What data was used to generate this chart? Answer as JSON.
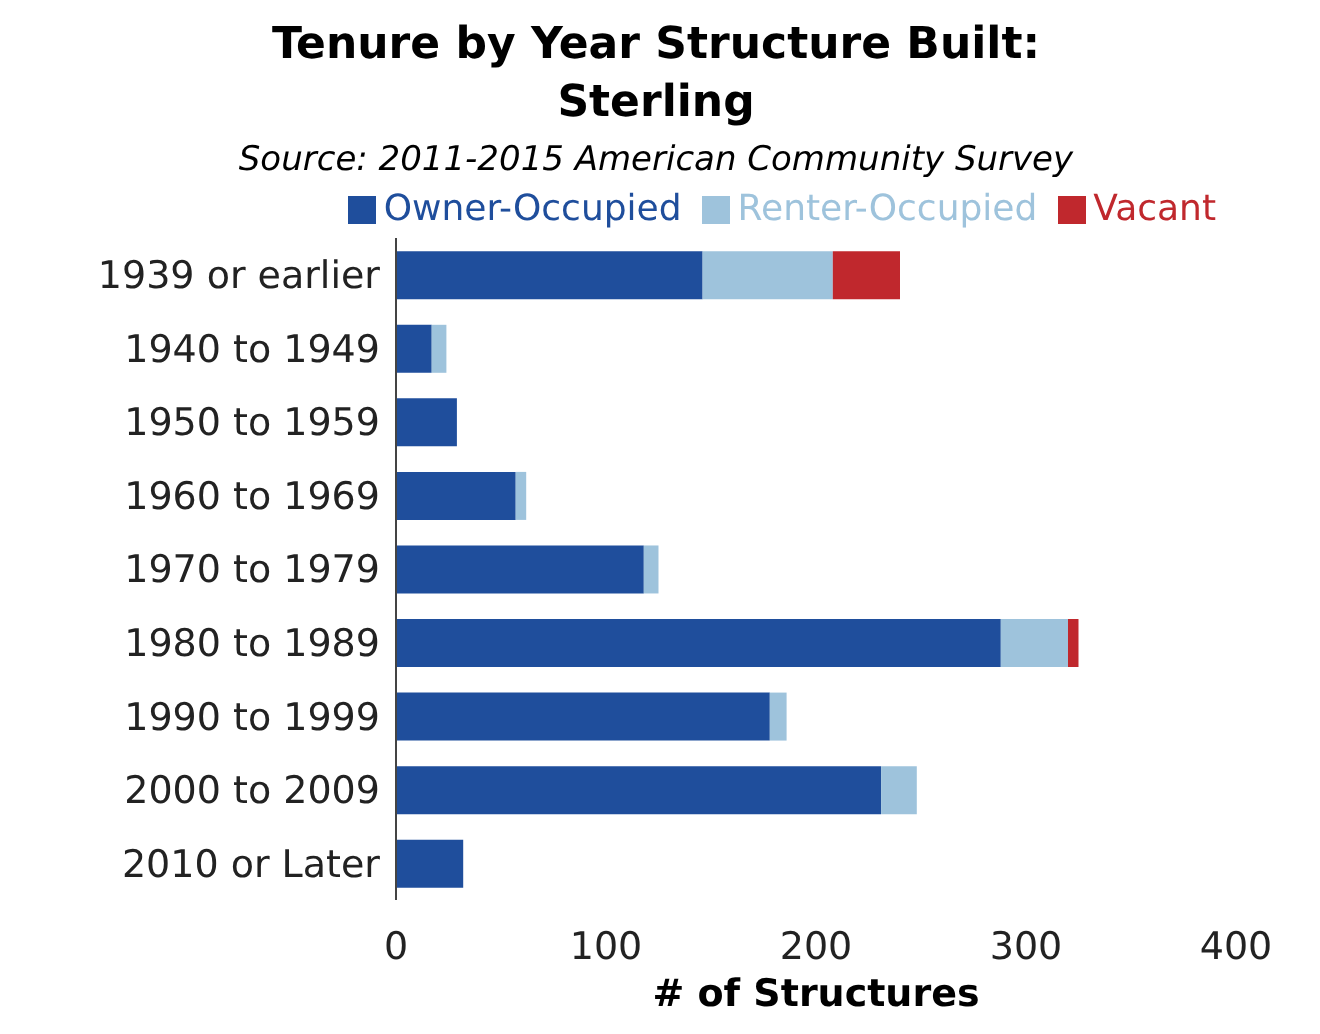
{
  "chart_data": {
    "type": "bar",
    "orientation": "horizontal",
    "stacked": true,
    "title": "Tenure by Year Structure Built:\nSterling",
    "subtitle": "Source: 2011-2015  American Community Survey",
    "xlabel": "# of Structures",
    "categories": [
      "1939 or earlier",
      "1940 to 1949",
      "1950 to 1959",
      "1960 to 1969",
      "1970 to 1979",
      "1980 to 1989",
      "1990 to 1999",
      "2000 to 2009",
      "2010 or Later"
    ],
    "series": [
      {
        "name": "Owner-Occupied",
        "color": "#1f4e9c",
        "values": [
          146,
          17,
          29,
          57,
          118,
          288,
          178,
          231,
          32
        ]
      },
      {
        "name": "Renter-Occupied",
        "color": "#9ec3dc",
        "values": [
          62,
          7,
          0,
          5,
          7,
          32,
          8,
          17,
          0
        ]
      },
      {
        "name": "Vacant",
        "color": "#c0282d",
        "values": [
          32,
          0,
          0,
          0,
          0,
          5,
          0,
          0,
          0
        ]
      }
    ],
    "xlim": [
      0,
      400
    ],
    "xticks": [
      0,
      100,
      200,
      300,
      400
    ],
    "grid": false,
    "legend": "top"
  }
}
